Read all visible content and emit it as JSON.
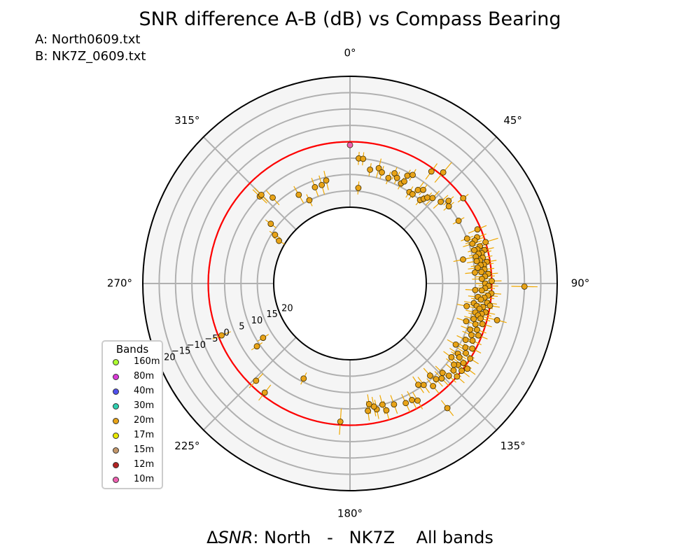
{
  "header": {
    "title": "SNR difference A-B (dB) vs Compass Bearing",
    "file_a": "A: North0609.txt",
    "file_b": "B: NK7Z_0609.txt"
  },
  "footer": {
    "label_prefix": "Δ",
    "label_italic": "SNR",
    "label_rest": ": North   -   NK7Z    All bands"
  },
  "legend": {
    "title": "Bands",
    "items": [
      {
        "label": "160m",
        "color": "#adff2f"
      },
      {
        "label": "80m",
        "color": "#da3ad8"
      },
      {
        "label": "40m",
        "color": "#5050ee"
      },
      {
        "label": "30m",
        "color": "#2fcfb0"
      },
      {
        "label": "20m",
        "color": "#e8a317"
      },
      {
        "label": "17m",
        "color": "#e8e800"
      },
      {
        "label": "15m",
        "color": "#c4976a"
      },
      {
        "label": "12m",
        "color": "#b22222"
      },
      {
        "label": "10m",
        "color": "#ee60b0"
      }
    ]
  },
  "chart_data": {
    "type": "scatter",
    "projection": "polar",
    "theta_direction": "clockwise",
    "theta_zero": "north",
    "theta_ticks": [
      "0°",
      "45°",
      "90°",
      "135°",
      "180°",
      "225°",
      "270°",
      "315°"
    ],
    "r_ticks": [
      "20",
      "15",
      "10",
      "5",
      "0",
      "−5",
      "−10",
      "−15",
      "−20"
    ],
    "r_range": [
      -20,
      20
    ],
    "zero_circle_color": "#ff0000",
    "point_color": "#e8a317",
    "errorbar_color": "#f0a800",
    "points": [
      {
        "bearing": 0,
        "snr": 1,
        "band": "10m"
      },
      {
        "bearing": 5,
        "snr": 14,
        "err": 2
      },
      {
        "bearing": 4,
        "snr": 5,
        "err": 2
      },
      {
        "bearing": 6,
        "snr": 5,
        "err": 2
      },
      {
        "bearing": 10,
        "snr": 8,
        "err": 2
      },
      {
        "bearing": 14,
        "snr": 7,
        "err": 3
      },
      {
        "bearing": 16,
        "snr": 8,
        "err": 2
      },
      {
        "bearing": 20,
        "snr": 9,
        "err": 2
      },
      {
        "bearing": 22,
        "snr": 7,
        "err": 2
      },
      {
        "bearing": 24,
        "snr": 8,
        "err": 2
      },
      {
        "bearing": 27,
        "snr": 9,
        "err": 2
      },
      {
        "bearing": 28,
        "snr": 6,
        "err": 2
      },
      {
        "bearing": 30,
        "snr": 5,
        "err": 2
      },
      {
        "bearing": 28,
        "snr": 8,
        "err": 2
      },
      {
        "bearing": 33,
        "snr": 10,
        "err": 2
      },
      {
        "bearing": 35,
        "snr": 10,
        "err": 2
      },
      {
        "bearing": 36,
        "snr": 8,
        "err": 3
      },
      {
        "bearing": 36,
        "snr": 1,
        "err": 3
      },
      {
        "bearing": 38,
        "snr": 7,
        "err": 2
      },
      {
        "bearing": 40,
        "snr": -1,
        "err": 4
      },
      {
        "bearing": 40,
        "snr": 10,
        "err": 2
      },
      {
        "bearing": 41,
        "snr": 9,
        "err": 2
      },
      {
        "bearing": 42,
        "snr": 8,
        "err": 2
      },
      {
        "bearing": 44,
        "snr": 7,
        "err": 3
      },
      {
        "bearing": 48,
        "snr": 6,
        "err": 3
      },
      {
        "bearing": 50,
        "snr": 4,
        "err": 2
      },
      {
        "bearing": 52,
        "snr": 5,
        "err": 2
      },
      {
        "bearing": 53,
        "snr": 0,
        "err": 2
      },
      {
        "bearing": 60,
        "snr": 5,
        "err": 2
      },
      {
        "bearing": 67,
        "snr": 1,
        "err": 3
      },
      {
        "bearing": 69,
        "snr": 5,
        "err": 2
      },
      {
        "bearing": 70,
        "snr": 2,
        "err": 3
      },
      {
        "bearing": 71,
        "snr": 3,
        "err": 3
      },
      {
        "bearing": 72,
        "snr": 4,
        "err": 3
      },
      {
        "bearing": 73,
        "snr": 0,
        "err": 4
      },
      {
        "bearing": 74,
        "snr": 2,
        "err": 3
      },
      {
        "bearing": 75,
        "snr": 3,
        "err": 3
      },
      {
        "bearing": 75,
        "snr": 4,
        "err": 2
      },
      {
        "bearing": 76,
        "snr": 1,
        "err": 3
      },
      {
        "bearing": 77,
        "snr": 2,
        "err": 3
      },
      {
        "bearing": 77,
        "snr": 3,
        "err": 3
      },
      {
        "bearing": 78,
        "snr": 4,
        "err": 3
      },
      {
        "bearing": 78,
        "snr": 8,
        "err": 3
      },
      {
        "bearing": 79,
        "snr": 2,
        "err": 3
      },
      {
        "bearing": 80,
        "snr": 3,
        "err": 3
      },
      {
        "bearing": 80,
        "snr": 4,
        "err": 3
      },
      {
        "bearing": 81,
        "snr": 1,
        "err": 3
      },
      {
        "bearing": 82,
        "snr": 2,
        "err": 3
      },
      {
        "bearing": 82,
        "snr": 3,
        "err": 3
      },
      {
        "bearing": 83,
        "snr": 4,
        "err": 3
      },
      {
        "bearing": 84,
        "snr": 2,
        "err": 3
      },
      {
        "bearing": 85,
        "snr": 3,
        "err": 3
      },
      {
        "bearing": 85,
        "snr": 5,
        "err": 3
      },
      {
        "bearing": 86,
        "snr": 1,
        "err": 3
      },
      {
        "bearing": 87,
        "snr": 2,
        "err": 3
      },
      {
        "bearing": 88,
        "snr": 3,
        "err": 3
      },
      {
        "bearing": 89,
        "snr": 0,
        "err": 3
      },
      {
        "bearing": 90,
        "snr": 2,
        "err": 3
      },
      {
        "bearing": 91,
        "snr": -10,
        "err": 4
      },
      {
        "bearing": 91,
        "snr": 1,
        "err": 3
      },
      {
        "bearing": 92,
        "snr": 2,
        "err": 3
      },
      {
        "bearing": 93,
        "snr": 3,
        "err": 3
      },
      {
        "bearing": 93,
        "snr": 5,
        "err": 3
      },
      {
        "bearing": 94,
        "snr": 0,
        "err": 3
      },
      {
        "bearing": 95,
        "snr": 1,
        "err": 3
      },
      {
        "bearing": 96,
        "snr": 2,
        "err": 3
      },
      {
        "bearing": 96,
        "snr": 4,
        "err": 3
      },
      {
        "bearing": 97,
        "snr": 3,
        "err": 3
      },
      {
        "bearing": 98,
        "snr": 1,
        "err": 3
      },
      {
        "bearing": 99,
        "snr": 0,
        "err": 3
      },
      {
        "bearing": 99,
        "snr": 5,
        "err": 3
      },
      {
        "bearing": 100,
        "snr": 2,
        "err": 3
      },
      {
        "bearing": 100,
        "snr": 4,
        "err": 3
      },
      {
        "bearing": 101,
        "snr": 3,
        "err": 3
      },
      {
        "bearing": 101,
        "snr": 7,
        "err": 3
      },
      {
        "bearing": 102,
        "snr": 1,
        "err": 3
      },
      {
        "bearing": 103,
        "snr": 2,
        "err": 3
      },
      {
        "bearing": 103,
        "snr": 4,
        "err": 3
      },
      {
        "bearing": 104,
        "snr": 3,
        "err": 3
      },
      {
        "bearing": 104,
        "snr": -3,
        "err": 3
      },
      {
        "bearing": 105,
        "snr": 2,
        "err": 3
      },
      {
        "bearing": 106,
        "snr": 4,
        "err": 3
      },
      {
        "bearing": 107,
        "snr": 1,
        "err": 3
      },
      {
        "bearing": 108,
        "snr": 3,
        "err": 3
      },
      {
        "bearing": 108,
        "snr": 6,
        "err": 3
      },
      {
        "bearing": 110,
        "snr": 2,
        "err": 3
      },
      {
        "bearing": 111,
        "snr": 4,
        "err": 3
      },
      {
        "bearing": 112,
        "snr": 1,
        "err": 3
      },
      {
        "bearing": 113,
        "snr": 3,
        "err": 3
      },
      {
        "bearing": 115,
        "snr": 2,
        "err": 3
      },
      {
        "bearing": 116,
        "snr": 4,
        "err": 3
      },
      {
        "bearing": 118,
        "snr": 1,
        "err": 3
      },
      {
        "bearing": 119,
        "snr": 3,
        "err": 3
      },
      {
        "bearing": 120,
        "snr": 6,
        "err": 3
      },
      {
        "bearing": 121,
        "snr": 2,
        "err": 3
      },
      {
        "bearing": 122,
        "snr": 0,
        "err": 3
      },
      {
        "bearing": 123,
        "snr": 4,
        "err": 3
      },
      {
        "bearing": 124,
        "snr": 3,
        "err": 3
      },
      {
        "bearing": 125,
        "snr": 1,
        "err": 3
      },
      {
        "bearing": 126,
        "snr": 5,
        "err": 3
      },
      {
        "bearing": 126,
        "snr": -1,
        "err": 3
      },
      {
        "bearing": 127,
        "snr": 2,
        "err": 3
      },
      {
        "bearing": 128,
        "snr": 0,
        "err": 3
      },
      {
        "bearing": 128,
        "snr": 3,
        "err": 3
      },
      {
        "bearing": 130,
        "snr": 2,
        "err": 3
      },
      {
        "bearing": 131,
        "snr": 0,
        "err": 3
      },
      {
        "bearing": 133,
        "snr": 2,
        "err": 3
      },
      {
        "bearing": 134,
        "snr": 4,
        "err": 3
      },
      {
        "bearing": 136,
        "snr": 3,
        "err": 3
      },
      {
        "bearing": 138,
        "snr": 4,
        "err": 3
      },
      {
        "bearing": 139,
        "snr": 6,
        "err": 3
      },
      {
        "bearing": 141,
        "snr": 3,
        "err": 3
      },
      {
        "bearing": 142,
        "snr": -5,
        "err": 3
      },
      {
        "bearing": 144,
        "snr": 5,
        "err": 3
      },
      {
        "bearing": 146,
        "snr": 6,
        "err": 3
      },
      {
        "bearing": 150,
        "snr": 2,
        "err": 3
      },
      {
        "bearing": 152,
        "snr": 3,
        "err": 3
      },
      {
        "bearing": 155,
        "snr": 3,
        "err": 3
      },
      {
        "bearing": 160,
        "snr": 4,
        "err": 3
      },
      {
        "bearing": 164,
        "snr": 3,
        "err": 3
      },
      {
        "bearing": 165,
        "snr": 5,
        "err": 3
      },
      {
        "bearing": 168,
        "snr": 4,
        "err": 3
      },
      {
        "bearing": 169,
        "snr": 5,
        "err": 3
      },
      {
        "bearing": 171,
        "snr": 6,
        "err": 3
      },
      {
        "bearing": 172,
        "snr": 4,
        "err": 3
      },
      {
        "bearing": 184,
        "snr": 1,
        "err": 4
      },
      {
        "bearing": 206,
        "snr": 11,
        "err": 2
      },
      {
        "bearing": 218,
        "snr": 1,
        "err": 3
      },
      {
        "bearing": 224,
        "snr": 2,
        "err": 3
      },
      {
        "bearing": 236,
        "snr": 9,
        "err": 2
      },
      {
        "bearing": 238,
        "snr": 12,
        "err": 2
      },
      {
        "bearing": 248,
        "snr": 1,
        "err": 3
      },
      {
        "bearing": 307,
        "snr": 13,
        "err": 2
      },
      {
        "bearing": 301,
        "snr": 18,
        "err": 2
      },
      {
        "bearing": 303,
        "snr": 16,
        "err": 2
      },
      {
        "bearing": 314,
        "snr": 5,
        "err": 3
      },
      {
        "bearing": 315,
        "snr": 5,
        "err": 3
      },
      {
        "bearing": 318,
        "snr": 8,
        "err": 3
      },
      {
        "bearing": 330,
        "snr": 12,
        "err": 3
      },
      {
        "bearing": 334,
        "snr": 15,
        "err": 2
      },
      {
        "bearing": 340,
        "snr": 12,
        "err": 3
      },
      {
        "bearing": 344,
        "snr": 12,
        "err": 3
      },
      {
        "bearing": 347,
        "snr": 11,
        "err": 3
      }
    ]
  }
}
